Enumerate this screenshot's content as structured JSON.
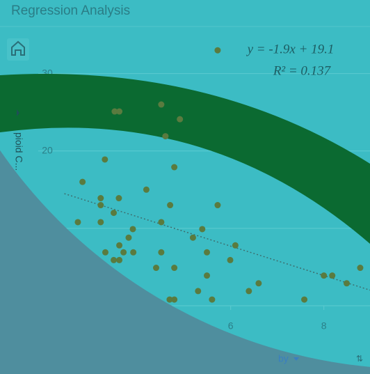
{
  "header": {
    "title": "Regression Analysis"
  },
  "chart_data": {
    "type": "scatter",
    "y_label": "pioid C...",
    "footer_label": "by",
    "equation": "y = -1.9x + 19.1",
    "r_squared": "R² = 0.137",
    "trendline": {
      "slope": -1.9,
      "intercept": 19.1
    },
    "color": "#5a7b3f",
    "grid": true,
    "xlim": [
      1.87,
      8.99
    ],
    "ylim": [
      0,
      35.9
    ],
    "xticks": [
      4,
      6,
      8
    ],
    "yticks": [
      10,
      20,
      30
    ],
    "x": [
      5.72,
      3.51,
      3.61,
      4.51,
      4.6,
      4.91,
      3.3,
      4.79,
      2.82,
      4.19,
      3.21,
      3.6,
      3.21,
      4.7,
      5.72,
      3.49,
      2.72,
      3.21,
      4.51,
      3.9,
      5.39,
      3.81,
      5.19,
      3.61,
      6.1,
      3.31,
      3.7,
      3.91,
      4.51,
      5.49,
      3.49,
      3.61,
      5.99,
      4.4,
      4.79,
      5.49,
      8.78,
      8.0,
      8.18,
      8.49,
      5.3,
      6.39,
      6.6,
      4.69,
      4.79,
      5.6,
      7.58
    ],
    "values": [
      33.0,
      25.1,
      25.1,
      26.0,
      21.9,
      24.1,
      18.9,
      17.9,
      16.0,
      15.0,
      13.9,
      13.9,
      13.0,
      13.0,
      13.0,
      12.0,
      10.8,
      10.8,
      10.8,
      9.9,
      9.9,
      8.8,
      8.8,
      7.8,
      7.8,
      6.9,
      6.9,
      6.9,
      6.9,
      6.9,
      5.9,
      5.9,
      5.9,
      4.9,
      4.9,
      3.9,
      4.9,
      3.9,
      3.9,
      2.9,
      1.9,
      1.9,
      2.9,
      0.8,
      0.8,
      0.8,
      0.8
    ]
  }
}
